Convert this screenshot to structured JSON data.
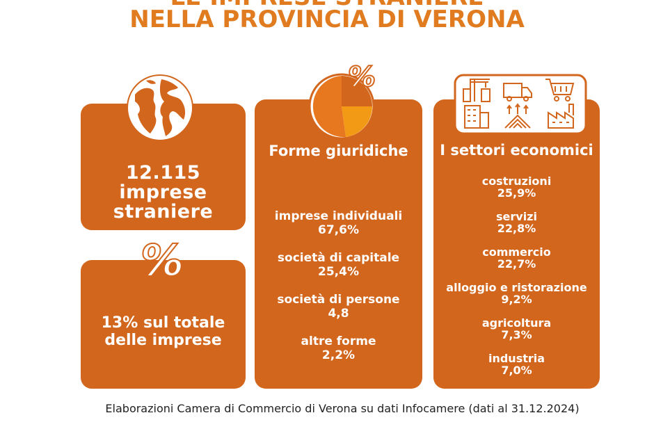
{
  "title": {
    "line1": "LE IMPRESE STRANIERE",
    "line2": "NELLA PROVINCIA DI VERONA"
  },
  "card_imprese": {
    "number": "12.115",
    "line2": "imprese",
    "line3": "straniere"
  },
  "card_quota": {
    "symbol": "%",
    "line1": "13% sul totale",
    "line2": "delle imprese"
  },
  "forme": {
    "symbol": "%",
    "heading": "Forme giuridiche",
    "items": [
      {
        "label": "imprese individuali",
        "value": "67,6%"
      },
      {
        "label": "società di capitale",
        "value": "25,4%"
      },
      {
        "label": "società di persone",
        "value": "4,8"
      },
      {
        "label": "altre forme",
        "value": "2,2%"
      }
    ]
  },
  "settori": {
    "heading": "I settori economici",
    "items": [
      {
        "label": "costruzioni",
        "value": "25,9%"
      },
      {
        "label": "servizi",
        "value": "22,8%"
      },
      {
        "label": "commercio",
        "value": "22,7%"
      },
      {
        "label": "alloggio e ristorazione",
        "value": "9,2%"
      },
      {
        "label": "agricoltura",
        "value": "7,3%"
      },
      {
        "label": "industria",
        "value": "7,0%"
      }
    ]
  },
  "icons": [
    "globe-icon",
    "percent-icon",
    "pie-chart-icon",
    "construction-icon",
    "truck-icon",
    "shopping-cart-icon",
    "building-icon",
    "farm-field-icon",
    "factory-icon"
  ],
  "colors": {
    "card": "#d3661d",
    "title": "#e07b20",
    "pie_main": "#e8781f",
    "pie_second": "#f29a16"
  },
  "footer": "Elaborazioni Camera di Commercio di Verona su dati Infocamere (dati al 31.12.2024)"
}
